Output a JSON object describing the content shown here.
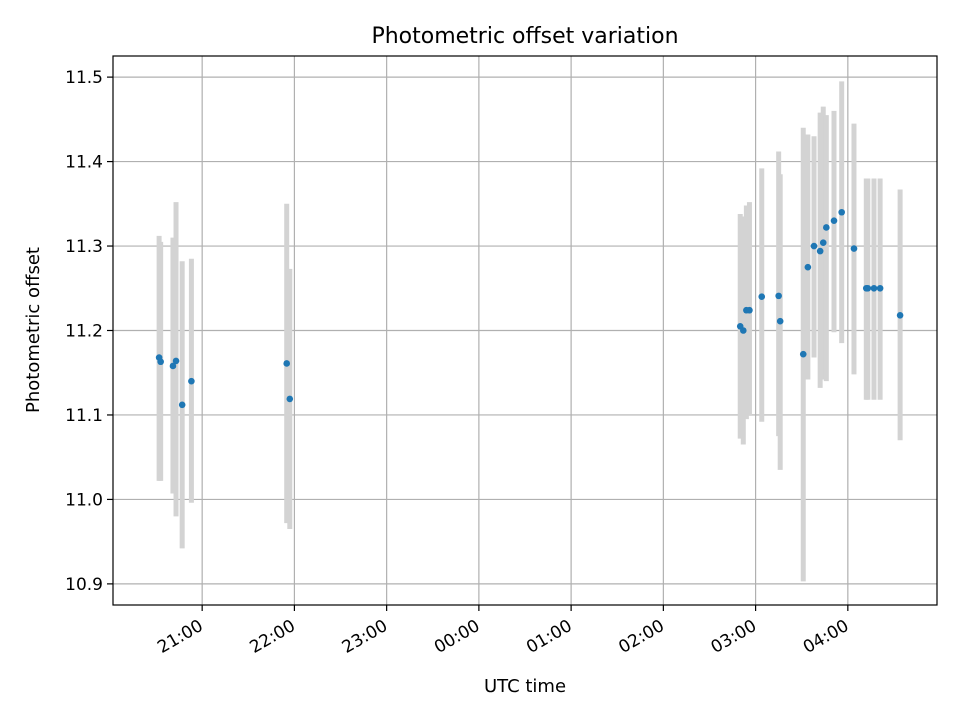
{
  "chart_data": {
    "type": "scatter",
    "title": "Photometric offset variation",
    "xlabel": "UTC time",
    "ylabel": "Photometric offset",
    "x_axis_type": "time",
    "x_range": [
      "20:02",
      "04:58"
    ],
    "ylim": [
      10.875,
      11.525
    ],
    "grid": true,
    "x_ticks": [
      "21:00",
      "22:00",
      "23:00",
      "00:00",
      "01:00",
      "02:00",
      "03:00",
      "04:00"
    ],
    "y_ticks": [
      10.9,
      11.0,
      11.1,
      11.2,
      11.3,
      11.4,
      11.5
    ],
    "y_tick_labels": [
      "10.9",
      "11.0",
      "11.1",
      "11.2",
      "11.3",
      "11.4",
      "11.5"
    ],
    "marker_color": "#1f77b4",
    "errorbar_color": "#d3d3d3",
    "points": [
      {
        "x": "20:32",
        "y": 11.168,
        "low": 11.022,
        "high": 11.312
      },
      {
        "x": "20:33",
        "y": 11.163,
        "low": 11.022,
        "high": 11.305
      },
      {
        "x": "20:41",
        "y": 11.158,
        "low": 11.007,
        "high": 11.31
      },
      {
        "x": "20:43",
        "y": 11.164,
        "low": 10.98,
        "high": 11.352
      },
      {
        "x": "20:47",
        "y": 11.112,
        "low": 10.942,
        "high": 11.282
      },
      {
        "x": "20:53",
        "y": 11.14,
        "low": 10.996,
        "high": 11.285
      },
      {
        "x": "21:55",
        "y": 11.161,
        "low": 10.972,
        "high": 11.35
      },
      {
        "x": "21:57",
        "y": 11.119,
        "low": 10.965,
        "high": 11.273
      },
      {
        "x": "02:50",
        "y": 11.205,
        "low": 11.072,
        "high": 11.338
      },
      {
        "x": "02:52",
        "y": 11.2,
        "low": 11.065,
        "high": 11.335
      },
      {
        "x": "02:54",
        "y": 11.224,
        "low": 11.095,
        "high": 11.348
      },
      {
        "x": "02:56",
        "y": 11.224,
        "low": 11.1,
        "high": 11.352
      },
      {
        "x": "03:04",
        "y": 11.24,
        "low": 11.092,
        "high": 11.392
      },
      {
        "x": "03:15",
        "y": 11.241,
        "low": 11.075,
        "high": 11.412
      },
      {
        "x": "03:16",
        "y": 11.211,
        "low": 11.035,
        "high": 11.385
      },
      {
        "x": "03:31",
        "y": 11.172,
        "low": 10.903,
        "high": 11.44
      },
      {
        "x": "03:34",
        "y": 11.275,
        "low": 11.142,
        "high": 11.432
      },
      {
        "x": "03:38",
        "y": 11.3,
        "low": 11.168,
        "high": 11.43
      },
      {
        "x": "03:42",
        "y": 11.294,
        "low": 11.132,
        "high": 11.458
      },
      {
        "x": "03:44",
        "y": 11.304,
        "low": 11.142,
        "high": 11.465
      },
      {
        "x": "03:46",
        "y": 11.322,
        "low": 11.14,
        "high": 11.455
      },
      {
        "x": "03:51",
        "y": 11.33,
        "low": 11.198,
        "high": 11.46
      },
      {
        "x": "03:56",
        "y": 11.34,
        "low": 11.185,
        "high": 11.495
      },
      {
        "x": "04:04",
        "y": 11.297,
        "low": 11.148,
        "high": 11.445
      },
      {
        "x": "04:12",
        "y": 11.25,
        "low": 11.118,
        "high": 11.38
      },
      {
        "x": "04:13",
        "y": 11.25,
        "low": 11.118,
        "high": 11.38
      },
      {
        "x": "04:17",
        "y": 11.25,
        "low": 11.118,
        "high": 11.38
      },
      {
        "x": "04:21",
        "y": 11.25,
        "low": 11.118,
        "high": 11.38
      },
      {
        "x": "04:34",
        "y": 11.218,
        "low": 11.07,
        "high": 11.367
      }
    ]
  }
}
